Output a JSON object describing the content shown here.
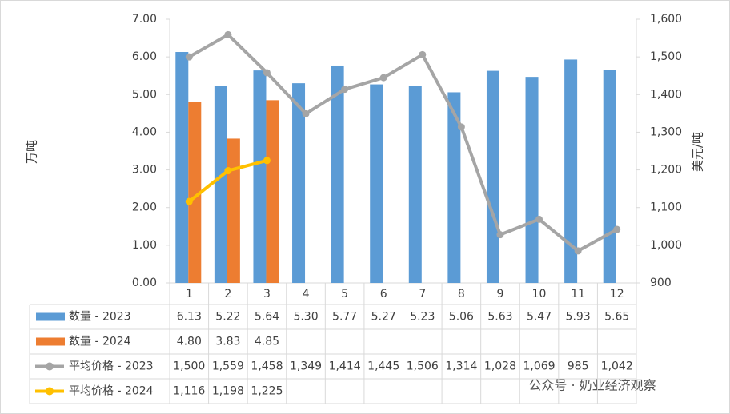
{
  "chart_data": {
    "type": "bar-line",
    "y_label": "万吨",
    "y2_label": "美元/吨",
    "watermark": "公众号 · 奶业经济观察",
    "categories": [
      "1",
      "2",
      "3",
      "4",
      "5",
      "6",
      "7",
      "8",
      "9",
      "10",
      "11",
      "12"
    ],
    "ylim": [
      0,
      7
    ],
    "yticks": [
      {
        "value": 0,
        "label": "0.00"
      },
      {
        "value": 1,
        "label": "1.00"
      },
      {
        "value": 2,
        "label": "2.00"
      },
      {
        "value": 3,
        "label": "3.00"
      },
      {
        "value": 4,
        "label": "4.00"
      },
      {
        "value": 5,
        "label": "5.00"
      },
      {
        "value": 6,
        "label": "6.00"
      },
      {
        "value": 7,
        "label": "7.00"
      }
    ],
    "y2lim": [
      900,
      1600
    ],
    "y2ticks": [
      900,
      {
        "value": 1000,
        "label": "1,000"
      },
      {
        "value": 1100,
        "label": "1,100"
      },
      {
        "value": 1200,
        "label": "1,200"
      },
      {
        "value": 1300,
        "label": "1,300"
      },
      {
        "value": 1400,
        "label": "1,400"
      },
      {
        "value": 1500,
        "label": "1,500"
      },
      {
        "value": 1600,
        "label": "1,600"
      }
    ],
    "series": [
      {
        "name": "数量 - 2023",
        "type": "bar",
        "color": "#5b9bd5",
        "values": [
          6.13,
          5.22,
          5.64,
          5.3,
          5.77,
          5.27,
          5.23,
          5.06,
          5.63,
          5.47,
          5.93,
          5.65
        ],
        "value_labels": [
          "6.13",
          "5.22",
          "5.64",
          "5.30",
          "5.77",
          "5.27",
          "5.23",
          "5.06",
          "5.63",
          "5.47",
          "5.93",
          "5.65"
        ]
      },
      {
        "name": "数量 - 2024",
        "type": "bar",
        "color": "#ed7d31",
        "values": [
          4.8,
          3.83,
          4.85,
          null,
          null,
          null,
          null,
          null,
          null,
          null,
          null,
          null
        ],
        "value_labels": [
          "4.80",
          "3.83",
          "4.85",
          null,
          null,
          null,
          null,
          null,
          null,
          null,
          null,
          null
        ]
      },
      {
        "name": "平均价格 - 2023",
        "type": "line",
        "axis": "y2",
        "color": "#a5a5a5",
        "values": [
          1500,
          1559,
          1458,
          1349,
          1414,
          1445,
          1506,
          1314,
          1028,
          1069,
          985,
          1042
        ],
        "value_labels": [
          "1,500",
          "1,559",
          "1,458",
          "1,349",
          "1,414",
          "1,445",
          "1,506",
          "1,314",
          "1,028",
          "1,069",
          "985",
          "1,042"
        ]
      },
      {
        "name": "平均价格 - 2024",
        "type": "line",
        "axis": "y2",
        "color": "#ffc000",
        "values": [
          1116,
          1198,
          1225,
          null,
          null,
          null,
          null,
          null,
          null,
          null,
          null,
          null
        ],
        "value_labels": [
          "1,116",
          "1,198",
          "1,225",
          null,
          null,
          null,
          null,
          null,
          null,
          null,
          null,
          null
        ]
      }
    ]
  }
}
